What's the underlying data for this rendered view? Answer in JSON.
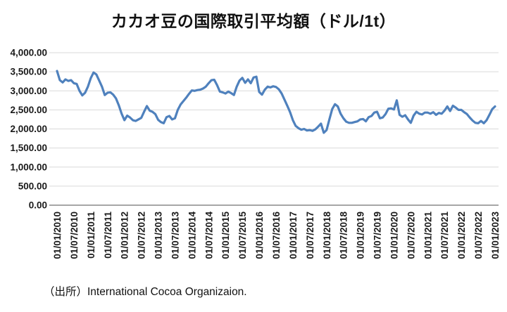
{
  "chart_data": {
    "type": "line",
    "title": "カカオ豆の国際取引平均額（ドル/1t）",
    "xlabel": "",
    "ylabel": "",
    "x_start": "01/01/2010",
    "x_interval": "monthly",
    "ylim": [
      0,
      4000
    ],
    "grid": true,
    "legend_position": "none",
    "line_color": "#4F81BD",
    "gridline_color": "#D9D9D9",
    "axis_line_color": "#A6A6A6",
    "y_tick_values": [
      0,
      500,
      1000,
      1500,
      2000,
      2500,
      3000,
      3500,
      4000
    ],
    "y_tick_labels": [
      "0.00",
      "500.00",
      "1,000.00",
      "1,500.00",
      "2,000.00",
      "2,500.00",
      "3,000.00",
      "3,500.00",
      "4,000.00"
    ],
    "x_tick_labels": [
      "01/01/2010",
      "01/07/2010",
      "01/01/2011",
      "01/07/2011",
      "01/01/2012",
      "01/07/2012",
      "01/01/2013",
      "01/07/2013",
      "01/01/2014",
      "01/07/2014",
      "01/01/2015",
      "01/07/2015",
      "01/01/2016",
      "01/07/2016",
      "01/01/2017",
      "01/07/2017",
      "01/01/2018",
      "01/07/2018",
      "01/01/2019",
      "01/07/2019",
      "01/01/2020",
      "01/07/2020",
      "01/01/2021",
      "01/07/2021",
      "01/01/2022",
      "01/07/2022",
      "01/01/2023"
    ],
    "x_ticks_every_n_months": 6,
    "values": [
      3520,
      3280,
      3220,
      3300,
      3260,
      3280,
      3200,
      3180,
      3000,
      2880,
      2950,
      3110,
      3330,
      3480,
      3430,
      3270,
      3110,
      2890,
      2950,
      2960,
      2900,
      2800,
      2620,
      2400,
      2230,
      2350,
      2300,
      2230,
      2210,
      2250,
      2290,
      2450,
      2600,
      2480,
      2450,
      2390,
      2240,
      2180,
      2150,
      2310,
      2340,
      2250,
      2280,
      2500,
      2640,
      2730,
      2820,
      2920,
      3010,
      3000,
      3020,
      3030,
      3060,
      3110,
      3200,
      3280,
      3290,
      3150,
      2980,
      2960,
      2930,
      2980,
      2940,
      2890,
      3110,
      3270,
      3340,
      3210,
      3300,
      3200,
      3350,
      3370,
      2970,
      2900,
      3030,
      3110,
      3090,
      3120,
      3100,
      3040,
      2930,
      2770,
      2610,
      2440,
      2230,
      2080,
      2020,
      1980,
      2000,
      1960,
      1970,
      1950,
      1990,
      2060,
      2140,
      1900,
      1970,
      2250,
      2520,
      2650,
      2590,
      2400,
      2280,
      2190,
      2160,
      2160,
      2180,
      2200,
      2250,
      2260,
      2200,
      2310,
      2340,
      2430,
      2450,
      2280,
      2300,
      2390,
      2530,
      2540,
      2510,
      2750,
      2370,
      2320,
      2360,
      2250,
      2160,
      2350,
      2450,
      2400,
      2380,
      2430,
      2430,
      2400,
      2440,
      2370,
      2420,
      2400,
      2480,
      2590,
      2470,
      2610,
      2560,
      2500,
      2500,
      2440,
      2390,
      2300,
      2220,
      2160,
      2150,
      2210,
      2150,
      2230,
      2370,
      2520,
      2590
    ]
  },
  "footer": {
    "source_note": "（出所）International Cocoa Organizaion."
  }
}
